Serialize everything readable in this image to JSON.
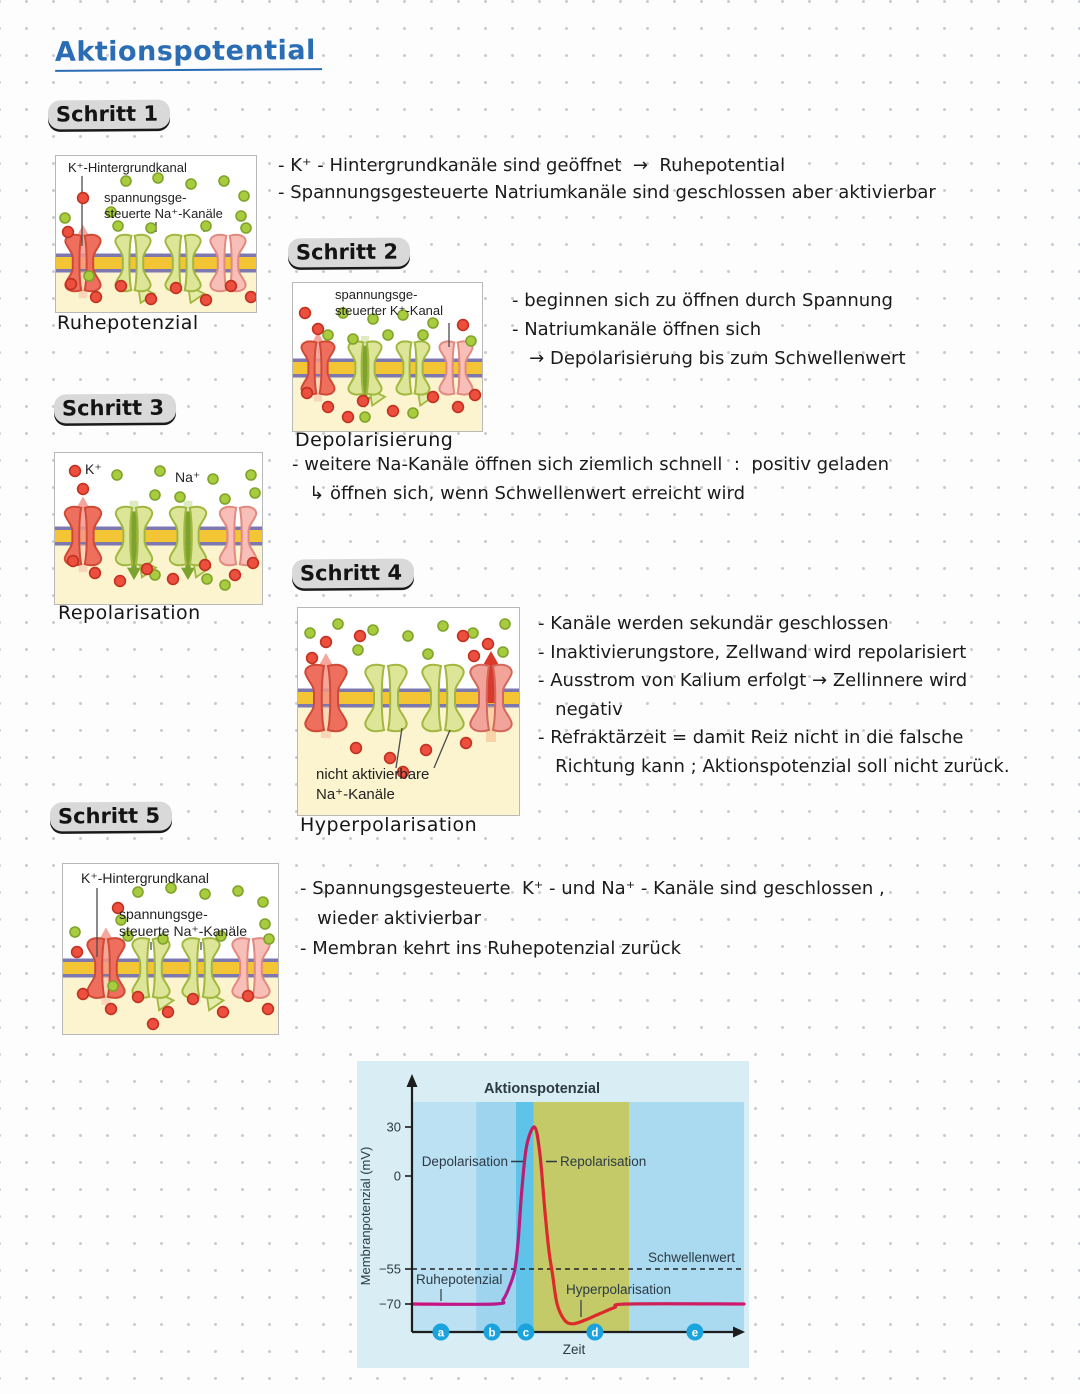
{
  "page": {
    "title": "Aktionspotential"
  },
  "steps": [
    {
      "heading": "Schritt 1",
      "caption": "Ruhepotenzial",
      "diagram_labels": [
        "K⁺-Hintergrundkanal",
        "spannungsge-",
        "steuerte Na⁺-Kanäle"
      ],
      "bullets": [
        "- K⁺ - Hintergrundkanäle sind geöffnet  →  Ruhepotential",
        "- Spannungsgesteuerte Natriumkanäle sind geschlossen aber aktivierbar"
      ]
    },
    {
      "heading": "Schritt 2",
      "caption": "Depolarisierung",
      "diagram_labels": [
        "spannungsge-",
        "steuerter K⁺-Kanal"
      ],
      "bullets": [
        "- beginnen sich zu öffnen durch Spannung",
        "- Natriumkanäle öffnen sich",
        "   → Depolarisierung bis zum Schwellenwert"
      ]
    },
    {
      "heading": "Schritt 3",
      "caption": "Repolarisation",
      "diagram_labels": [
        "K⁺",
        "Na⁺"
      ],
      "bullets": [
        "- weitere Na-Kanäle öffnen sich ziemlich schnell  :  positiv geladen",
        "   ↳ öffnen sich, wenn Schwellenwert erreicht wird"
      ]
    },
    {
      "heading": "Schritt 4",
      "caption": "Hyperpolarisation",
      "diagram_labels": [
        "nicht aktivierbare",
        "Na⁺-Kanäle"
      ],
      "bullets": [
        "- Kanäle werden sekundär geschlossen",
        "- Inaktivierungstore, Zellwand wird repolarisiert",
        "- Ausstrom von Kalium erfolgt → Zellinnere wird",
        "   negativ",
        "- Refraktärzeit = damit Reiz nicht in die falsche",
        "   Richtung kann ; Aktionspotenzial soll nicht zurück."
      ]
    },
    {
      "heading": "Schritt 5",
      "caption": null,
      "diagram_labels": [
        "K⁺-Hintergrundkanal",
        "spannungsge-",
        "steuerte Na⁺-Kanäle"
      ],
      "bullets": [
        "- Spannungsgesteuerte  K⁺ - und Na⁺ - Kanäle sind geschlossen ,",
        "   wieder aktivierbar",
        "- Membran kehrt ins Ruhepotenzial zurück"
      ]
    }
  ],
  "chart_data": {
    "type": "line",
    "title": "Aktionspotenzial",
    "xlabel": "Zeit",
    "ylabel": "Membranpotenzial (mV)",
    "yticks": [
      30,
      0,
      -55,
      -70
    ],
    "ylim": [
      -85,
      40
    ],
    "grid": false,
    "threshold_label": "Schwellenwert",
    "threshold_value": -55,
    "resting_label": "Ruhepotenzial",
    "resting_value": -70,
    "labels": {
      "depolarisation": "Depolarisation",
      "repolarisation": "Repolarisation",
      "hyperpolarisation": "Hyperpolarisation"
    },
    "phase_markers": [
      "a",
      "b",
      "c",
      "d",
      "e"
    ],
    "phase_x": [
      8.7,
      24.1,
      34.3,
      55.1,
      85.2
    ],
    "regions": [
      {
        "from": 0,
        "to": 19.3,
        "color": "#bce1f3"
      },
      {
        "from": 19.3,
        "to": 31.3,
        "color": "#9fd4ee"
      },
      {
        "from": 31.3,
        "to": 36.7,
        "color": "#5ec2e9"
      },
      {
        "from": 36.7,
        "to": 65.4,
        "color": "#c3ca67"
      },
      {
        "from": 65.4,
        "to": 100,
        "color": "#a9daf0"
      }
    ],
    "curve": [
      [
        0,
        -70
      ],
      [
        25,
        -70
      ],
      [
        27.5,
        -68
      ],
      [
        29.5,
        -62
      ],
      [
        31,
        -55
      ],
      [
        32,
        -38
      ],
      [
        33,
        -10
      ],
      [
        34.5,
        18
      ],
      [
        36.9,
        30
      ],
      [
        38.5,
        14
      ],
      [
        40,
        -20
      ],
      [
        41.3,
        -45
      ],
      [
        42.3,
        -57
      ],
      [
        43.7,
        -70
      ],
      [
        46,
        -77
      ],
      [
        48.5,
        -78.5
      ],
      [
        52,
        -77
      ],
      [
        56,
        -74.5
      ],
      [
        61,
        -71.5
      ],
      [
        65,
        -70
      ],
      [
        100,
        -70
      ]
    ],
    "curve_colors": {
      "rise": "#d0107e",
      "fall": "#dc2b28",
      "end": "#cf1670"
    },
    "background_color": "#d8edf4",
    "marker_color": "#1aa3dd"
  }
}
